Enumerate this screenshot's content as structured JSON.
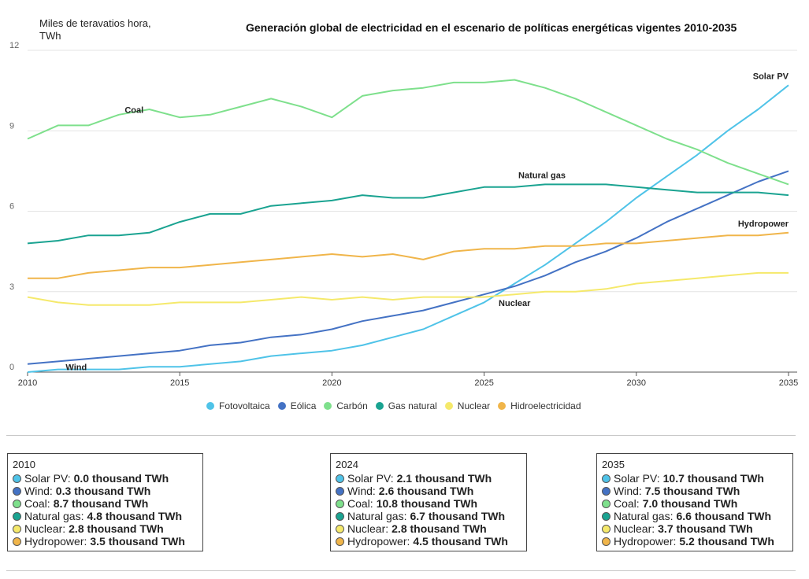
{
  "header": {
    "ylabel_line1": "Miles de teravatios hora,",
    "ylabel_line2": "TWh",
    "title": "Generación global de electricidad en el escenario de políticas energéticas vigentes 2010-2035"
  },
  "chart_data": {
    "type": "line",
    "title": "Generación global de electricidad en el escenario de políticas energéticas vigentes 2010-2035",
    "ylabel": "Miles de teravatios hora, TWh",
    "xlim": [
      2010,
      2035
    ],
    "ylim": [
      0,
      12
    ],
    "xticks": [
      2010,
      2015,
      2020,
      2025,
      2030,
      2035
    ],
    "yticks": [
      0,
      3,
      6,
      9,
      12
    ],
    "grid": true,
    "x": [
      2010,
      2011,
      2012,
      2013,
      2014,
      2015,
      2016,
      2017,
      2018,
      2019,
      2020,
      2021,
      2022,
      2023,
      2024,
      2025,
      2026,
      2027,
      2028,
      2029,
      2030,
      2031,
      2032,
      2033,
      2034,
      2035
    ],
    "series": [
      {
        "key": "solar",
        "name": "Fotovoltaica",
        "label": "Solar PV",
        "color": "#4fc3e8",
        "values": [
          0.0,
          0.1,
          0.1,
          0.1,
          0.2,
          0.2,
          0.3,
          0.4,
          0.6,
          0.7,
          0.8,
          1.0,
          1.3,
          1.6,
          2.1,
          2.6,
          3.3,
          4.0,
          4.8,
          5.6,
          6.5,
          7.3,
          8.1,
          9.0,
          9.8,
          10.7
        ]
      },
      {
        "key": "wind",
        "name": "Eólica",
        "label": "Wind",
        "color": "#4472c4",
        "values": [
          0.3,
          0.4,
          0.5,
          0.6,
          0.7,
          0.8,
          1.0,
          1.1,
          1.3,
          1.4,
          1.6,
          1.9,
          2.1,
          2.3,
          2.6,
          2.9,
          3.2,
          3.6,
          4.1,
          4.5,
          5.0,
          5.6,
          6.1,
          6.6,
          7.1,
          7.5
        ]
      },
      {
        "key": "coal",
        "name": "Carbón",
        "label": "Coal",
        "color": "#7ee08c",
        "values": [
          8.7,
          9.2,
          9.2,
          9.6,
          9.8,
          9.5,
          9.6,
          9.9,
          10.2,
          9.9,
          9.5,
          10.3,
          10.5,
          10.6,
          10.8,
          10.8,
          10.9,
          10.6,
          10.2,
          9.7,
          9.2,
          8.7,
          8.3,
          7.8,
          7.4,
          7.0
        ]
      },
      {
        "key": "gas",
        "name": "Gas natural",
        "label": "Natural gas",
        "color": "#1aa391",
        "values": [
          4.8,
          4.9,
          5.1,
          5.1,
          5.2,
          5.6,
          5.9,
          5.9,
          6.2,
          6.3,
          6.4,
          6.6,
          6.5,
          6.5,
          6.7,
          6.9,
          6.9,
          7.0,
          7.0,
          7.0,
          6.9,
          6.8,
          6.7,
          6.7,
          6.7,
          6.6
        ]
      },
      {
        "key": "nuclear",
        "name": "Nuclear",
        "label": "Nuclear",
        "color": "#f5e96b",
        "values": [
          2.8,
          2.6,
          2.5,
          2.5,
          2.5,
          2.6,
          2.6,
          2.6,
          2.7,
          2.8,
          2.7,
          2.8,
          2.7,
          2.8,
          2.8,
          2.8,
          2.9,
          3.0,
          3.0,
          3.1,
          3.3,
          3.4,
          3.5,
          3.6,
          3.7,
          3.7
        ]
      },
      {
        "key": "hydro",
        "name": "Hidroelectricidad",
        "label": "Hydropower",
        "color": "#f0b54a",
        "values": [
          3.5,
          3.5,
          3.7,
          3.8,
          3.9,
          3.9,
          4.0,
          4.1,
          4.2,
          4.3,
          4.4,
          4.3,
          4.4,
          4.2,
          4.5,
          4.6,
          4.6,
          4.7,
          4.7,
          4.8,
          4.8,
          4.9,
          5.0,
          5.1,
          5.1,
          5.2
        ]
      }
    ],
    "annotations": [
      "Coal",
      "Natural gas",
      "Solar PV",
      "Hydropower",
      "Nuclear",
      "Wind"
    ]
  },
  "tooltips": [
    {
      "year": "2010",
      "rows": [
        {
          "label": "Solar PV:",
          "value": "0.0 thousand TWh",
          "color": "#4fc3e8"
        },
        {
          "label": "Wind:",
          "value": "0.3 thousand TWh",
          "color": "#4472c4"
        },
        {
          "label": "Coal:",
          "value": "8.7 thousand TWh",
          "color": "#7ee08c"
        },
        {
          "label": "Natural gas:",
          "value": "4.8 thousand TWh",
          "color": "#1aa391"
        },
        {
          "label": "Nuclear:",
          "value": "2.8 thousand TWh",
          "color": "#f5e96b"
        },
        {
          "label": "Hydropower:",
          "value": "3.5 thousand TWh",
          "color": "#f0b54a"
        }
      ]
    },
    {
      "year": "2024",
      "rows": [
        {
          "label": "Solar PV:",
          "value": "2.1 thousand TWh",
          "color": "#4fc3e8"
        },
        {
          "label": "Wind:",
          "value": "2.6 thousand TWh",
          "color": "#4472c4"
        },
        {
          "label": "Coal:",
          "value": "10.8 thousand TWh",
          "color": "#7ee08c"
        },
        {
          "label": "Natural gas:",
          "value": "6.7 thousand TWh",
          "color": "#1aa391"
        },
        {
          "label": "Nuclear:",
          "value": "2.8 thousand TWh",
          "color": "#f5e96b"
        },
        {
          "label": "Hydropower:",
          "value": "4.5 thousand TWh",
          "color": "#f0b54a"
        }
      ]
    },
    {
      "year": "2035",
      "rows": [
        {
          "label": "Solar PV:",
          "value": "10.7 thousand TWh",
          "color": "#4fc3e8"
        },
        {
          "label": "Wind:",
          "value": "7.5 thousand TWh",
          "color": "#4472c4"
        },
        {
          "label": "Coal:",
          "value": "7.0 thousand TWh",
          "color": "#7ee08c"
        },
        {
          "label": "Natural gas:",
          "value": "6.6 thousand TWh",
          "color": "#1aa391"
        },
        {
          "label": "Nuclear:",
          "value": "3.7 thousand TWh",
          "color": "#f5e96b"
        },
        {
          "label": "Hydropower:",
          "value": "5.2 thousand TWh",
          "color": "#f0b54a"
        }
      ]
    }
  ]
}
